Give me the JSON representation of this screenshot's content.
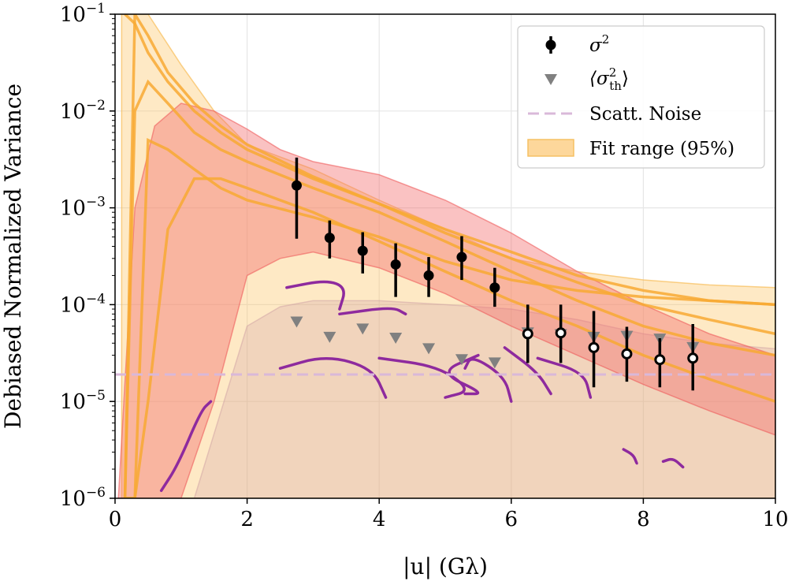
{
  "chart_data": {
    "type": "scatter",
    "xlabel": "|u| (Gλ)",
    "ylabel": "Debiased Normalized Variance",
    "xlim": [
      0,
      10
    ],
    "ylim": [
      1e-06,
      0.1
    ],
    "yscale": "log",
    "grid": true,
    "legend_position": "top-right",
    "x_ticks": [
      0,
      2,
      4,
      6,
      8,
      10
    ],
    "x_tick_labels": [
      "0",
      "2",
      "4",
      "6",
      "8",
      "10"
    ],
    "y_tick_exponents": [
      -6,
      -5,
      -4,
      -3,
      -2,
      -1
    ],
    "y_tick_base": "10",
    "legend": {
      "sigma2": "σ",
      "sigma2_sup": "2",
      "theory": "⟨σ",
      "theory_sup": "2",
      "theory_sub": "th",
      "theory_close": "⟩",
      "noise": "Scatt. Noise",
      "fit": "Fit range (95%)"
    },
    "series": [
      {
        "name": "σ²",
        "kind": "errorbar",
        "x": [
          2.75,
          3.25,
          3.75,
          4.25,
          4.75,
          5.25,
          5.75,
          6.25,
          6.75,
          7.25,
          7.75,
          8.25,
          8.75
        ],
        "y": [
          0.0017,
          0.00049,
          0.00036,
          0.00026,
          0.0002,
          0.00031,
          0.00015,
          5e-05,
          5.1e-05,
          3.6e-05,
          3.1e-05,
          2.7e-05,
          2.8e-05
        ],
        "ylow": [
          0.00048,
          0.0003,
          0.00021,
          0.00012,
          0.00012,
          0.00018,
          9.5e-05,
          2.5e-05,
          2.5e-05,
          1.4e-05,
          1.6e-05,
          1.4e-05,
          1.3e-05
        ],
        "yhigh": [
          0.0033,
          0.00074,
          0.00056,
          0.00043,
          0.00031,
          0.00051,
          0.00024,
          0.0001,
          0.0001,
          8.6e-05,
          5.9e-05,
          4.5e-05,
          6.3e-05
        ],
        "open_marker": [
          false,
          false,
          false,
          false,
          false,
          false,
          false,
          true,
          true,
          true,
          true,
          true,
          true
        ]
      },
      {
        "name": "⟨σ²_th⟩",
        "kind": "triangle",
        "x": [
          2.75,
          3.25,
          3.75,
          4.25,
          4.75,
          5.25,
          5.75,
          6.25,
          6.75,
          7.25,
          7.75,
          8.25,
          8.75
        ],
        "y": [
          6.6e-05,
          4.6e-05,
          5.6e-05,
          4.5e-05,
          3.5e-05,
          2.7e-05,
          2.5e-05,
          5.1e-05,
          4.9e-05,
          4.6e-05,
          4.7e-05,
          4.4e-05,
          3.6e-05
        ]
      },
      {
        "name": "Scatt. Noise",
        "kind": "hline",
        "y": 1.9e-05
      },
      {
        "name": "Fit range (95%)",
        "kind": "band",
        "x": [
          0.1,
          0.3,
          0.5,
          1.0,
          1.5,
          2.0,
          3.0,
          4.0,
          5.0,
          6.0,
          7.0,
          8.0,
          9.0,
          10.0
        ],
        "upper": [
          0.1,
          0.1,
          0.1,
          0.03,
          0.01,
          0.0045,
          0.0025,
          0.0012,
          0.0006,
          0.0003,
          0.00022,
          0.00018,
          0.00016,
          0.00015
        ],
        "lower": [
          1e-06,
          1e-06,
          1e-06,
          1e-06,
          1e-06,
          1e-06,
          1e-06,
          1e-06,
          1e-06,
          1e-06,
          1e-06,
          1e-06,
          1e-06,
          1e-06
        ]
      },
      {
        "name": "Model band",
        "kind": "band",
        "x": [
          0.05,
          0.3,
          0.6,
          1.0,
          1.5,
          2.0,
          2.5,
          3.0,
          4.0,
          5.0,
          6.0,
          7.0,
          8.0,
          9.0,
          10.0
        ],
        "upper": [
          1e-06,
          0.001,
          0.007,
          0.012,
          0.01,
          0.0065,
          0.004,
          0.003,
          0.0022,
          0.0012,
          0.00055,
          0.00022,
          0.0001,
          5e-05,
          3e-05
        ],
        "lower": [
          1e-06,
          1e-06,
          1e-06,
          1e-06,
          1e-05,
          0.0002,
          0.0003,
          0.00035,
          0.00024,
          0.00013,
          6e-05,
          3e-05,
          1.5e-05,
          8e-06,
          4.5e-06
        ]
      },
      {
        "name": "Theory band",
        "kind": "band",
        "x": [
          0.6,
          1.2,
          2.0,
          2.5,
          3.0,
          4.0,
          5.0,
          6.0,
          7.0,
          8.0,
          9.0,
          10.0
        ],
        "upper": [
          1e-06,
          1e-06,
          6e-05,
          9.5e-05,
          0.00011,
          0.00011,
          0.0001,
          9e-05,
          7e-05,
          5e-05,
          4e-05,
          3.5e-05
        ],
        "lower": [
          1e-06,
          1e-06,
          1e-06,
          1e-06,
          1e-06,
          1e-06,
          1e-06,
          1e-06,
          1e-06,
          1e-06,
          1e-06,
          1e-06
        ]
      },
      {
        "name": "Fit curves",
        "kind": "lines",
        "x": [
          0.15,
          0.3,
          0.5,
          0.8,
          1.2,
          1.6,
          2.0,
          3.0,
          4.0,
          5.0,
          6.0,
          7.0,
          8.0,
          9.0,
          10.0
        ],
        "lines": [
          [
            0.1,
            0.08,
            0.04,
            0.02,
            0.01,
            0.006,
            0.004,
            0.002,
            0.0011,
            0.0006,
            0.00035,
            0.0002,
            0.00014,
            0.00011,
            0.0001
          ],
          [
            1e-06,
            0.1,
            0.06,
            0.025,
            0.012,
            0.007,
            0.0045,
            0.0021,
            0.0011,
            0.00055,
            0.0003,
            0.00017,
            0.0001,
            7e-05,
            5e-05
          ],
          [
            1e-06,
            0.01,
            0.02,
            0.012,
            0.006,
            0.004,
            0.003,
            0.0016,
            0.0009,
            0.00045,
            0.00022,
            0.00011,
            6e-05,
            4e-05,
            3e-05
          ],
          [
            1e-06,
            1e-06,
            0.005,
            0.004,
            0.0025,
            0.0016,
            0.0012,
            0.0008,
            0.0005,
            0.00028,
            0.00018,
            0.00014,
            0.00012,
            0.00011,
            0.0001
          ],
          [
            1e-06,
            1e-06,
            1e-05,
            0.0006,
            0.002,
            0.002,
            0.0016,
            0.0009,
            0.00045,
            0.00022,
            0.00011,
            6e-05,
            3e-05,
            1.7e-05,
            1e-05
          ]
        ]
      },
      {
        "name": "Purple arcs",
        "kind": "arcs",
        "paths": [
          [
            [
              0.7,
              1.2e-06
            ],
            [
              0.95,
              2.2e-06
            ],
            [
              1.3,
              8e-06
            ],
            [
              1.45,
              1e-05
            ]
          ],
          [
            [
              2.6,
              0.00015
            ],
            [
              3.2,
              0.00018
            ],
            [
              3.5,
              0.00015
            ],
            [
              3.4,
              9e-05
            ]
          ],
          [
            [
              3.4,
              8e-05
            ],
            [
              4.2,
              9.5e-05
            ],
            [
              4.4,
              8e-05
            ]
          ],
          [
            [
              2.5,
              2.2e-05
            ],
            [
              3.2,
              3e-05
            ],
            [
              3.9,
              2.2e-05
            ],
            [
              4.1,
              1.1e-05
            ]
          ],
          [
            [
              4.0,
              2.8e-05
            ],
            [
              4.9,
              2.3e-05
            ],
            [
              5.4,
              1.3e-05
            ],
            [
              5.0,
              1.1e-05
            ]
          ],
          [
            [
              5.5,
              3e-05
            ],
            [
              4.9,
              2e-05
            ],
            [
              5.6,
              1.2e-05
            ],
            [
              5.3,
              1.2e-05
            ]
          ],
          [
            [
              5.3,
              2.2e-05
            ],
            [
              5.4,
              3e-05
            ],
            [
              5.9,
              1.8e-05
            ],
            [
              6.0,
              1e-05
            ]
          ],
          [
            [
              5.9,
              3.6e-05
            ],
            [
              6.4,
              2e-05
            ],
            [
              6.6,
              1.2e-05
            ]
          ],
          [
            [
              6.4,
              2.8e-05
            ],
            [
              7.1,
              2e-05
            ],
            [
              7.2,
              1.1e-05
            ]
          ],
          [
            [
              7.7,
              3.2e-06
            ],
            [
              7.85,
              2.8e-06
            ],
            [
              7.9,
              2.3e-06
            ]
          ],
          [
            [
              8.3,
              2.4e-06
            ],
            [
              8.45,
              2.6e-06
            ],
            [
              8.6,
              2.1e-06
            ]
          ]
        ]
      }
    ]
  }
}
